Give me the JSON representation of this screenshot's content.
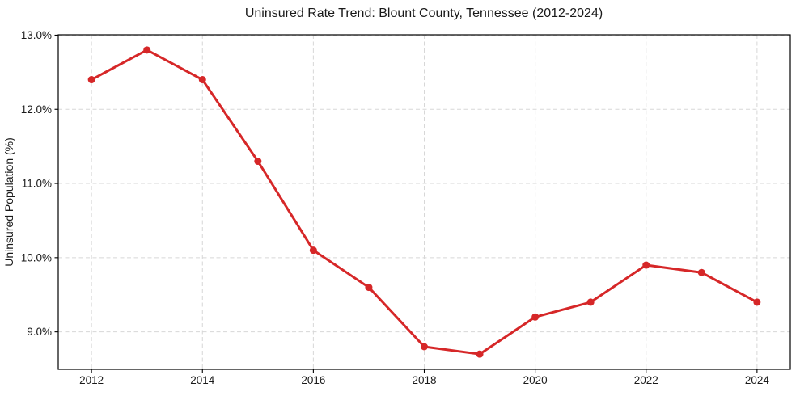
{
  "chart_data": {
    "type": "line",
    "title": "Uninsured Rate Trend: Blount County, Tennessee (2012-2024)",
    "xlabel": "",
    "ylabel": "Uninsured Population (%)",
    "x": [
      2012,
      2013,
      2014,
      2015,
      2016,
      2017,
      2018,
      2019,
      2020,
      2021,
      2022,
      2023,
      2024
    ],
    "values": [
      12.4,
      12.8,
      12.4,
      11.3,
      10.1,
      9.6,
      8.8,
      8.7,
      9.2,
      9.4,
      9.9,
      9.8,
      9.4
    ],
    "xticks": [
      2012,
      2014,
      2016,
      2018,
      2020,
      2022,
      2024
    ],
    "yticks": [
      9.0,
      10.0,
      11.0,
      12.0,
      13.0
    ],
    "ytick_labels": [
      "9.0%",
      "10.0%",
      "11.0%",
      "12.0%",
      "13.0%"
    ],
    "xlim": [
      2011.4,
      2024.6
    ],
    "ylim": [
      8.495,
      13.005
    ],
    "grid": true,
    "grid_style": "dashed",
    "legend": "none",
    "marker": "circle",
    "line_color": "#d62728",
    "grid_color": "#d7d7d7",
    "spine_color": "#000000",
    "text_color": "#1a1a1a",
    "background_color": "#ffffff"
  }
}
